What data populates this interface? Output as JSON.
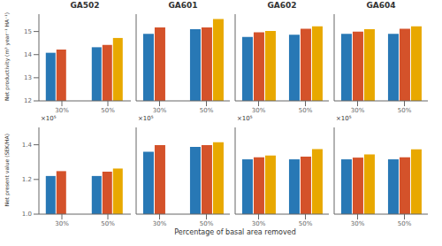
{
  "xlabel": "Percentage of basal area removed",
  "chart_data": [
    {
      "type": "bar",
      "title": "GA502",
      "ylabel": "Net productivity (m³ year⁻¹ HA⁻¹)",
      "categories": [
        "30%",
        "50%"
      ],
      "series": [
        {
          "color": "#2878b5",
          "values": [
            14.08,
            14.32
          ]
        },
        {
          "color": "#d4522a",
          "values": [
            14.22,
            14.42
          ]
        },
        {
          "color": "#e8a800",
          "values": [
            null,
            14.72
          ]
        }
      ],
      "ylim": [
        12.0,
        15.75
      ],
      "yticks": [
        12,
        13,
        14,
        15
      ],
      "grid": false
    },
    {
      "type": "bar",
      "title": "GA601",
      "categories": [
        "30%",
        "50%"
      ],
      "series": [
        {
          "color": "#2878b5",
          "values": [
            14.9,
            15.1
          ]
        },
        {
          "color": "#d4522a",
          "values": [
            15.18,
            15.18
          ]
        },
        {
          "color": "#e8a800",
          "values": [
            null,
            15.54
          ]
        }
      ],
      "ylim": [
        12.0,
        15.75
      ],
      "yticks": [
        12,
        13,
        14,
        15
      ],
      "grid": false,
      "tick_labels": "x"
    },
    {
      "type": "bar",
      "title": "GA602",
      "categories": [
        "30%",
        "50%"
      ],
      "series": [
        {
          "color": "#2878b5",
          "values": [
            14.76,
            14.86
          ]
        },
        {
          "color": "#d4522a",
          "values": [
            14.97,
            15.12
          ]
        },
        {
          "color": "#e8a800",
          "values": [
            15.02,
            15.22
          ]
        }
      ],
      "ylim": [
        12.0,
        15.75
      ],
      "yticks": [
        12,
        13,
        14,
        15
      ],
      "grid": false,
      "tick_labels": "x"
    },
    {
      "type": "bar",
      "title": "GA604",
      "categories": [
        "30%",
        "50%"
      ],
      "series": [
        {
          "color": "#2878b5",
          "values": [
            14.9,
            14.9
          ]
        },
        {
          "color": "#d4522a",
          "values": [
            14.99,
            15.12
          ]
        },
        {
          "color": "#e8a800",
          "values": [
            15.1,
            15.22
          ]
        }
      ],
      "ylim": [
        12.0,
        15.75
      ],
      "yticks": [
        12,
        13,
        14,
        15
      ],
      "grid": false,
      "tick_labels": "x"
    },
    {
      "type": "bar",
      "annotation": "×10⁵",
      "ylabel": "Net present value (SEK/HA)",
      "categories": [
        "30%",
        "50%"
      ],
      "series": [
        {
          "color": "#2878b5",
          "values": [
            1.22,
            1.22
          ]
        },
        {
          "color": "#d4522a",
          "values": [
            1.248,
            1.245
          ]
        },
        {
          "color": "#e8a800",
          "values": [
            null,
            1.263
          ]
        }
      ],
      "ylim": [
        1.0,
        1.5
      ],
      "yticks": [
        {
          "value": 1.0,
          "label": "1.0"
        },
        {
          "value": 1.2,
          "label": "1.2"
        },
        {
          "value": 1.4,
          "label": "1.4"
        }
      ],
      "grid": false
    },
    {
      "type": "bar",
      "annotation": "×10⁵",
      "categories": [
        "30%",
        "50%"
      ],
      "series": [
        {
          "color": "#2878b5",
          "values": [
            1.36,
            1.388
          ]
        },
        {
          "color": "#d4522a",
          "values": [
            1.398,
            1.398
          ]
        },
        {
          "color": "#e8a800",
          "values": [
            null,
            1.415
          ]
        }
      ],
      "ylim": [
        1.0,
        1.5
      ],
      "yticks": [
        {
          "value": 1.0,
          "label": "1.0"
        },
        {
          "value": 1.2,
          "label": "1.2"
        },
        {
          "value": 1.4,
          "label": "1.4"
        }
      ],
      "grid": false,
      "tick_labels": "x"
    },
    {
      "type": "bar",
      "annotation": "×10⁵",
      "categories": [
        "30%",
        "50%"
      ],
      "series": [
        {
          "color": "#2878b5",
          "values": [
            1.316,
            1.316
          ]
        },
        {
          "color": "#d4522a",
          "values": [
            1.328,
            1.332
          ]
        },
        {
          "color": "#e8a800",
          "values": [
            1.338,
            1.375
          ]
        }
      ],
      "ylim": [
        1.0,
        1.5
      ],
      "yticks": [
        {
          "value": 1.0,
          "label": "1.0"
        },
        {
          "value": 1.2,
          "label": "1.2"
        },
        {
          "value": 1.4,
          "label": "1.4"
        }
      ],
      "grid": false,
      "tick_labels": "x"
    },
    {
      "type": "bar",
      "annotation": "×10⁵",
      "categories": [
        "30%",
        "50%"
      ],
      "series": [
        {
          "color": "#2878b5",
          "values": [
            1.316,
            1.316
          ]
        },
        {
          "color": "#d4522a",
          "values": [
            1.326,
            1.328
          ]
        },
        {
          "color": "#e8a800",
          "values": [
            1.344,
            1.374
          ]
        }
      ],
      "ylim": [
        1.0,
        1.5
      ],
      "yticks": [
        {
          "value": 1.0,
          "label": "1.0"
        },
        {
          "value": 1.2,
          "label": "1.2"
        },
        {
          "value": 1.4,
          "label": "1.4"
        }
      ],
      "grid": false,
      "tick_labels": "x"
    }
  ]
}
